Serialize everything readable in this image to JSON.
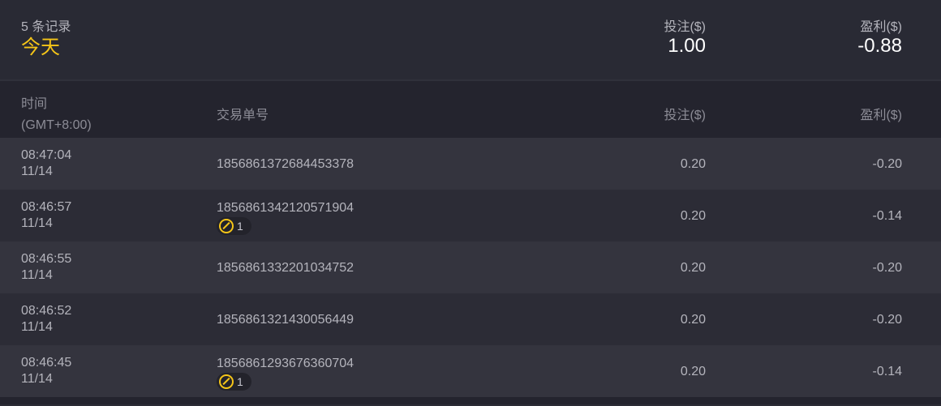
{
  "summary": {
    "record_count": "5 条记录",
    "period": "今天",
    "bet_label": "投注($)",
    "bet_total": "1.00",
    "profit_label": "盈利($)",
    "profit_total": "-0.88"
  },
  "header": {
    "time": "时间",
    "timezone": "(GMT+8:00)",
    "order": "交易单号",
    "bet": "投注($)",
    "profit": "盈利($)"
  },
  "accent": "#f5c518",
  "rows": [
    {
      "time": "08:47:04",
      "date": "11/14",
      "order": "1856861372684453378",
      "bet": "0.20",
      "profit": "-0.20"
    },
    {
      "time": "08:46:57",
      "date": "11/14",
      "order": "1856861342120571904",
      "badge": "1",
      "bet": "0.20",
      "profit": "-0.14"
    },
    {
      "time": "08:46:55",
      "date": "11/14",
      "order": "1856861332201034752",
      "bet": "0.20",
      "profit": "-0.20"
    },
    {
      "time": "08:46:52",
      "date": "11/14",
      "order": "1856861321430056449",
      "bet": "0.20",
      "profit": "-0.20"
    },
    {
      "time": "08:46:45",
      "date": "11/14",
      "order": "1856861293676360704",
      "badge": "1",
      "bet": "0.20",
      "profit": "-0.14"
    }
  ]
}
